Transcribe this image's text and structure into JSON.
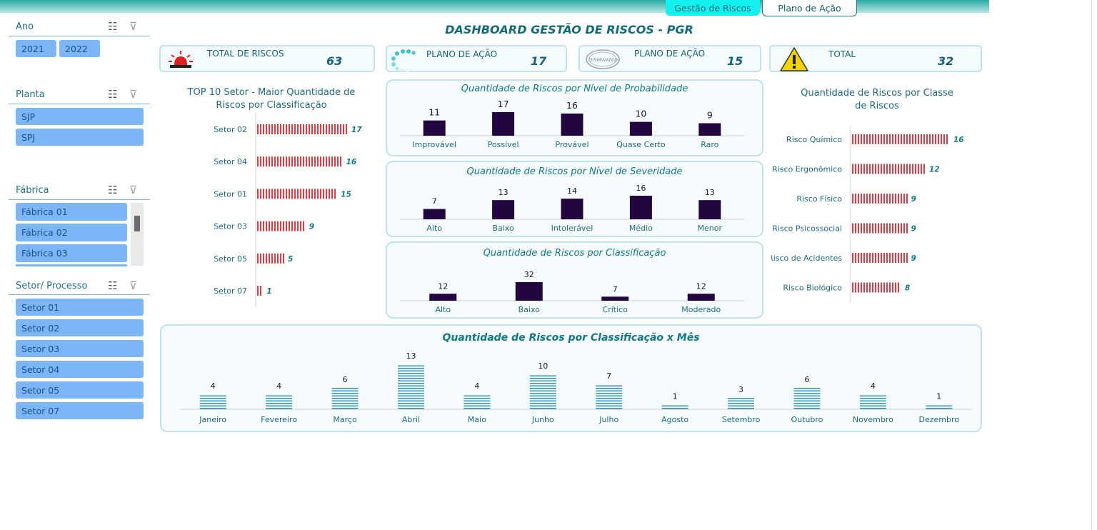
{
  "tabs": {
    "active": "Gestão de Riscos",
    "other": "Plano de Ação"
  },
  "slicers": {
    "ano": {
      "title": "Ano",
      "items": [
        "2021",
        "2022"
      ]
    },
    "planta": {
      "title": "Planta",
      "items": [
        "SJP",
        "SPJ"
      ]
    },
    "fabrica": {
      "title": "Fábrica",
      "items": [
        "Fábrica 01",
        "Fábrica 02",
        "Fábrica 03"
      ]
    },
    "setor": {
      "title": "Setor/ Processo",
      "items": [
        "Setor 01",
        "Setor 02",
        "Setor 03",
        "Setor 04",
        "Setor 05",
        "Setor 07"
      ]
    }
  },
  "dashboard_title": "DASHBOARD GESTÃO DE RISCOS - PGR",
  "kpis": [
    {
      "label": "TOTAL DE RISCOS",
      "value": "63",
      "icon": "siren-icon"
    },
    {
      "label": "PLANO DE AÇÃO",
      "value": "17",
      "icon": "loading-icon"
    },
    {
      "label": "PLANO DE AÇÃO",
      "value": "15",
      "icon": "terminated-stamp-icon",
      "stamp_text": "TERMINATED"
    },
    {
      "label": "TOTAL",
      "value": "32",
      "icon": "warning-icon"
    }
  ],
  "colors": {
    "hbar": "#e8373f",
    "vbar": "#220640",
    "monthbar": "#3e98b6",
    "label_teal": "#0f7b80"
  },
  "chart_data": [
    {
      "type": "bar",
      "orientation": "horizontal",
      "title": "TOP 10 Setor - Maior Quantidade de Riscos por Classificação",
      "categories": [
        "Setor 02",
        "Setor 04",
        "Setor 01",
        "Setor 03",
        "Setor 05",
        "Setor 07"
      ],
      "values": [
        17,
        16,
        15,
        9,
        5,
        1
      ]
    },
    {
      "type": "bar",
      "title": "Quantidade de Riscos por Nível de Probabilidade",
      "categories": [
        "Improvável",
        "Possível",
        "Provável",
        "Quase Certo",
        "Raro"
      ],
      "values": [
        11,
        17,
        16,
        10,
        9
      ]
    },
    {
      "type": "bar",
      "title": "Quantidade de Riscos por Nível de Severidade",
      "categories": [
        "Alto",
        "Baixo",
        "Intolerável",
        "Médio",
        "Menor"
      ],
      "values": [
        7,
        13,
        14,
        16,
        13
      ]
    },
    {
      "type": "bar",
      "title": "Quantidade de Riscos por Classificação",
      "categories": [
        "Alto",
        "Baixo",
        "Crítico",
        "Moderado"
      ],
      "values": [
        12,
        32,
        7,
        12
      ]
    },
    {
      "type": "bar",
      "orientation": "horizontal",
      "title": "Quantidade de Riscos por Classe de Riscos",
      "categories": [
        "Risco Químico",
        "Risco Ergonômico",
        "Risco Físico",
        "Risco Psicossocial",
        "Risco de Acidentes",
        "Risco Biológico"
      ],
      "values": [
        16,
        12,
        9,
        9,
        9,
        8
      ]
    },
    {
      "type": "bar",
      "title": "Quantidade de Riscos por Classificação x Mês",
      "categories": [
        "Janeiro",
        "Fevereiro",
        "Março",
        "Abril",
        "Maio",
        "Junho",
        "Julho",
        "Agosto",
        "Setembro",
        "Outubro",
        "Novembro",
        "Dezembro"
      ],
      "values": [
        4,
        4,
        6,
        13,
        4,
        10,
        7,
        1,
        3,
        6,
        4,
        1
      ]
    }
  ]
}
